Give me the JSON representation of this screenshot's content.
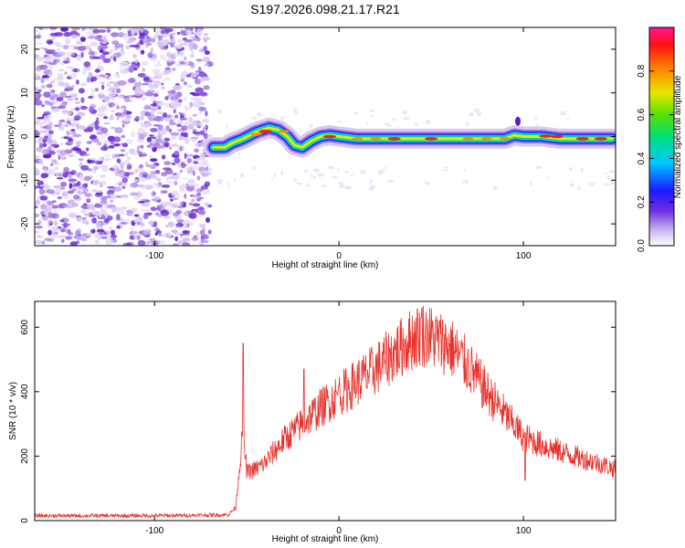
{
  "title": "S197.2026.098.21.17.R21",
  "chart_data": [
    {
      "type": "heatmap",
      "title": "S197.2026.098.21.17.R21",
      "xlabel": "Height of straight line (km)",
      "ylabel": "Frequency (Hz)",
      "xlim": [
        -165,
        150
      ],
      "ylim": [
        -25,
        25
      ],
      "xticks": [
        -100,
        0,
        100
      ],
      "yticks": [
        20,
        10,
        0,
        -10,
        -20
      ],
      "noise_region_x": [
        -165,
        -70
      ],
      "ridge": {
        "description_points_x": [
          -68,
          -62,
          -58,
          -52,
          -45,
          -38,
          -33,
          -28,
          -24,
          -20,
          -15,
          -10,
          -5,
          0,
          10,
          30,
          50,
          70,
          80,
          90,
          95,
          100,
          110,
          120,
          130,
          140,
          148
        ],
        "frequency_hz": [
          -2.5,
          -2.5,
          -1.5,
          -0.5,
          1,
          2,
          1.5,
          0,
          -2,
          -2.5,
          -1,
          0,
          0.3,
          0,
          -0.5,
          -0.5,
          -0.5,
          -0.5,
          -0.5,
          -0.5,
          0.3,
          0,
          0,
          -0.5,
          -0.5,
          -0.5,
          -0.5
        ]
      },
      "colorbar": {
        "label": "Normalized spectral amplitude",
        "range": [
          0,
          1
        ],
        "ticks": [
          "0.0",
          "0.2",
          "0.4",
          "0.6",
          "0.8"
        ],
        "tick_values": [
          0,
          0.2,
          0.4,
          0.6,
          0.8
        ]
      }
    },
    {
      "type": "line",
      "xlabel": "Height of straight line (km)",
      "ylabel": "SNR (10 * v/v)",
      "xlim": [
        -165,
        150
      ],
      "ylim": [
        0,
        680
      ],
      "xticks": [
        -100,
        0,
        100
      ],
      "yticks": [
        0,
        200,
        400,
        600
      ],
      "color": "#e8322c",
      "envelope": {
        "x": [
          -165,
          -100,
          -60,
          -56,
          -52,
          -50,
          -45,
          -40,
          -30,
          -20,
          -10,
          0,
          10,
          20,
          30,
          40,
          45,
          50,
          60,
          70,
          80,
          90,
          100,
          110,
          120,
          130,
          140,
          150
        ],
        "y": [
          15,
          15,
          18,
          40,
          280,
          150,
          160,
          180,
          250,
          300,
          350,
          390,
          430,
          470,
          520,
          565,
          580,
          570,
          540,
          480,
          400,
          330,
          260,
          235,
          215,
          195,
          180,
          160
        ]
      },
      "spikes": [
        {
          "x": -52,
          "y": 550
        },
        {
          "x": -19,
          "y": 470
        },
        {
          "x": 0,
          "y": 420
        },
        {
          "x": 45,
          "y": 660
        },
        {
          "x": 101,
          "y": 125
        }
      ]
    }
  ]
}
